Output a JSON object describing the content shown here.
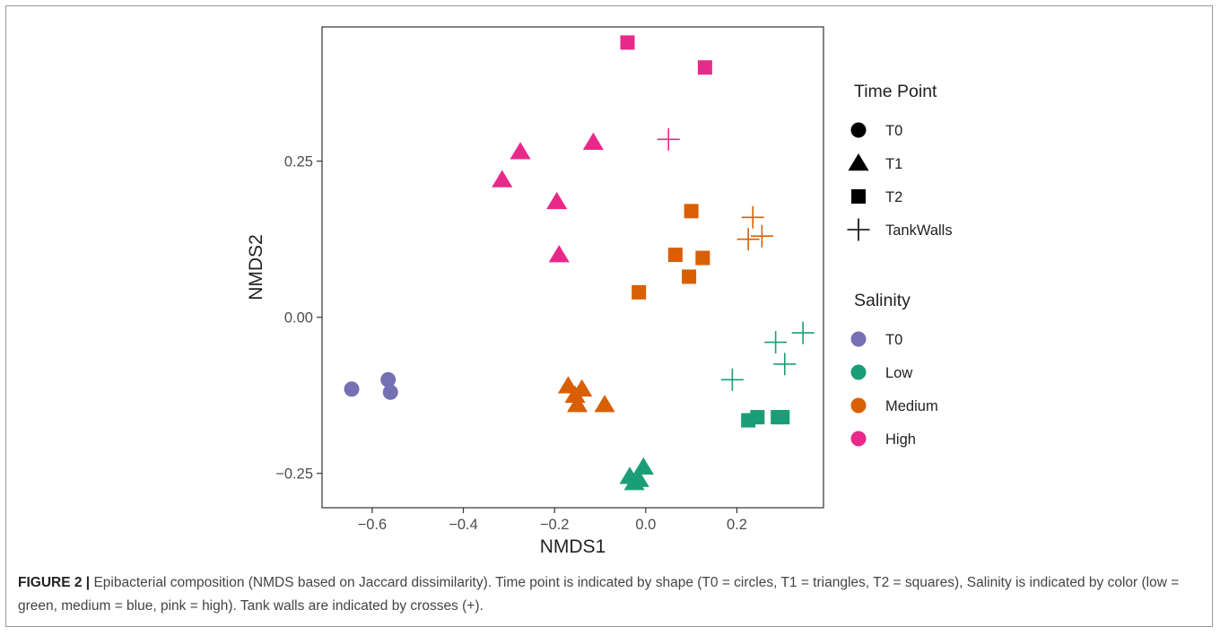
{
  "caption": {
    "label": "FIGURE 2 |",
    "text": " Epibacterial composition (NMDS based on Jaccard dissimilarity). Time point is indicated by shape (T0 = circles, T1 = triangles, T2 = squares), Salinity is indicated by color (low = green, medium = blue, pink = high). Tank walls are indicated by crosses (+)."
  },
  "chart_data": {
    "type": "scatter",
    "xlabel": "NMDS1",
    "ylabel": "NMDS2",
    "xlim": [
      -0.71,
      0.39
    ],
    "ylim": [
      -0.305,
      0.465
    ],
    "xticks": [
      -0.6,
      -0.4,
      -0.2,
      0.0,
      0.2
    ],
    "xtick_labels": [
      "−0.6",
      "−0.4",
      "−0.2",
      "0.0",
      "0.2"
    ],
    "yticks": [
      -0.25,
      0.0,
      0.25
    ],
    "ytick_labels": [
      "−0.25",
      "0.00",
      "0.25"
    ],
    "grid": false,
    "legend_placement": "right",
    "legends": [
      {
        "title": "Time Point",
        "kind": "shape",
        "entries": [
          {
            "label": "T0",
            "shape": "circle"
          },
          {
            "label": "T1",
            "shape": "triangle"
          },
          {
            "label": "T2",
            "shape": "square"
          },
          {
            "label": "TankWalls",
            "shape": "cross"
          }
        ]
      },
      {
        "title": "Salinity",
        "kind": "color",
        "entries": [
          {
            "label": "T0",
            "color": "#7570b3"
          },
          {
            "label": "Low",
            "color": "#1b9e77"
          },
          {
            "label": "Medium",
            "color": "#d95f02"
          },
          {
            "label": "High",
            "color": "#e7298a"
          }
        ]
      }
    ],
    "colors": {
      "T0": "#7570b3",
      "Low": "#1b9e77",
      "Medium": "#d95f02",
      "High": "#e7298a"
    },
    "points": [
      {
        "x": -0.645,
        "y": -0.115,
        "shape": "circle",
        "salinity": "T0"
      },
      {
        "x": -0.565,
        "y": -0.1,
        "shape": "circle",
        "salinity": "T0"
      },
      {
        "x": -0.56,
        "y": -0.12,
        "shape": "circle",
        "salinity": "T0"
      },
      {
        "x": -0.315,
        "y": 0.22,
        "shape": "triangle",
        "salinity": "High"
      },
      {
        "x": -0.275,
        "y": 0.265,
        "shape": "triangle",
        "salinity": "High"
      },
      {
        "x": -0.115,
        "y": 0.28,
        "shape": "triangle",
        "salinity": "High"
      },
      {
        "x": -0.195,
        "y": 0.185,
        "shape": "triangle",
        "salinity": "High"
      },
      {
        "x": -0.19,
        "y": 0.1,
        "shape": "triangle",
        "salinity": "High"
      },
      {
        "x": -0.04,
        "y": 0.44,
        "shape": "square",
        "salinity": "High"
      },
      {
        "x": 0.13,
        "y": 0.4,
        "shape": "square",
        "salinity": "High"
      },
      {
        "x": 0.05,
        "y": 0.285,
        "shape": "cross",
        "salinity": "High"
      },
      {
        "x": -0.17,
        "y": -0.11,
        "shape": "triangle",
        "salinity": "Medium"
      },
      {
        "x": -0.14,
        "y": -0.115,
        "shape": "triangle",
        "salinity": "Medium"
      },
      {
        "x": -0.155,
        "y": -0.125,
        "shape": "triangle",
        "salinity": "Medium"
      },
      {
        "x": -0.15,
        "y": -0.14,
        "shape": "triangle",
        "salinity": "Medium"
      },
      {
        "x": -0.09,
        "y": -0.14,
        "shape": "triangle",
        "salinity": "Medium"
      },
      {
        "x": 0.1,
        "y": 0.17,
        "shape": "square",
        "salinity": "Medium"
      },
      {
        "x": 0.065,
        "y": 0.1,
        "shape": "square",
        "salinity": "Medium"
      },
      {
        "x": 0.125,
        "y": 0.095,
        "shape": "square",
        "salinity": "Medium"
      },
      {
        "x": 0.095,
        "y": 0.065,
        "shape": "square",
        "salinity": "Medium"
      },
      {
        "x": -0.015,
        "y": 0.04,
        "shape": "square",
        "salinity": "Medium"
      },
      {
        "x": 0.235,
        "y": 0.16,
        "shape": "cross",
        "salinity": "Medium"
      },
      {
        "x": 0.225,
        "y": 0.125,
        "shape": "cross",
        "salinity": "Medium"
      },
      {
        "x": 0.255,
        "y": 0.13,
        "shape": "cross",
        "salinity": "Medium"
      },
      {
        "x": -0.005,
        "y": -0.24,
        "shape": "triangle",
        "salinity": "Low"
      },
      {
        "x": -0.035,
        "y": -0.255,
        "shape": "triangle",
        "salinity": "Low"
      },
      {
        "x": -0.025,
        "y": -0.265,
        "shape": "triangle",
        "salinity": "Low"
      },
      {
        "x": -0.015,
        "y": -0.26,
        "shape": "triangle",
        "salinity": "Low"
      },
      {
        "x": 0.225,
        "y": -0.165,
        "shape": "square",
        "salinity": "Low"
      },
      {
        "x": 0.245,
        "y": -0.16,
        "shape": "square",
        "salinity": "Low"
      },
      {
        "x": 0.29,
        "y": -0.16,
        "shape": "square",
        "salinity": "Low"
      },
      {
        "x": 0.3,
        "y": -0.16,
        "shape": "square",
        "salinity": "Low"
      },
      {
        "x": 0.19,
        "y": -0.1,
        "shape": "cross",
        "salinity": "Low"
      },
      {
        "x": 0.285,
        "y": -0.04,
        "shape": "cross",
        "salinity": "Low"
      },
      {
        "x": 0.305,
        "y": -0.075,
        "shape": "cross",
        "salinity": "Low"
      },
      {
        "x": 0.345,
        "y": -0.025,
        "shape": "cross",
        "salinity": "Low"
      }
    ]
  }
}
